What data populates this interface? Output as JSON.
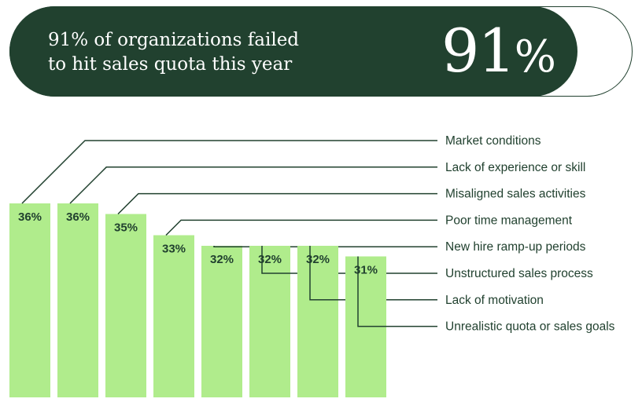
{
  "banner": {
    "headline_line1": "91% of organizations failed",
    "headline_line2": "to hit sales quota this year",
    "stat_number": "91",
    "stat_symbol": "%"
  },
  "colors": {
    "dark_green": "#21412f",
    "bar_green": "#b0ec8c",
    "background": "#ffffff"
  },
  "chart_data": {
    "type": "bar",
    "categories": [
      "Market conditions",
      "Lack of experience or skill",
      "Misaligned sales activities",
      "Poor time management",
      "New hire ramp-up periods",
      "Unstructured sales process",
      "Lack of motivation",
      "Unrealistic quota or sales goals"
    ],
    "values": [
      36,
      36,
      35,
      33,
      32,
      32,
      32,
      31
    ],
    "value_labels": [
      "36%",
      "36%",
      "35%",
      "33%",
      "32%",
      "32%",
      "32%",
      "31%"
    ],
    "unit": "%",
    "legend": "labels at right with leader lines",
    "grid": false
  }
}
